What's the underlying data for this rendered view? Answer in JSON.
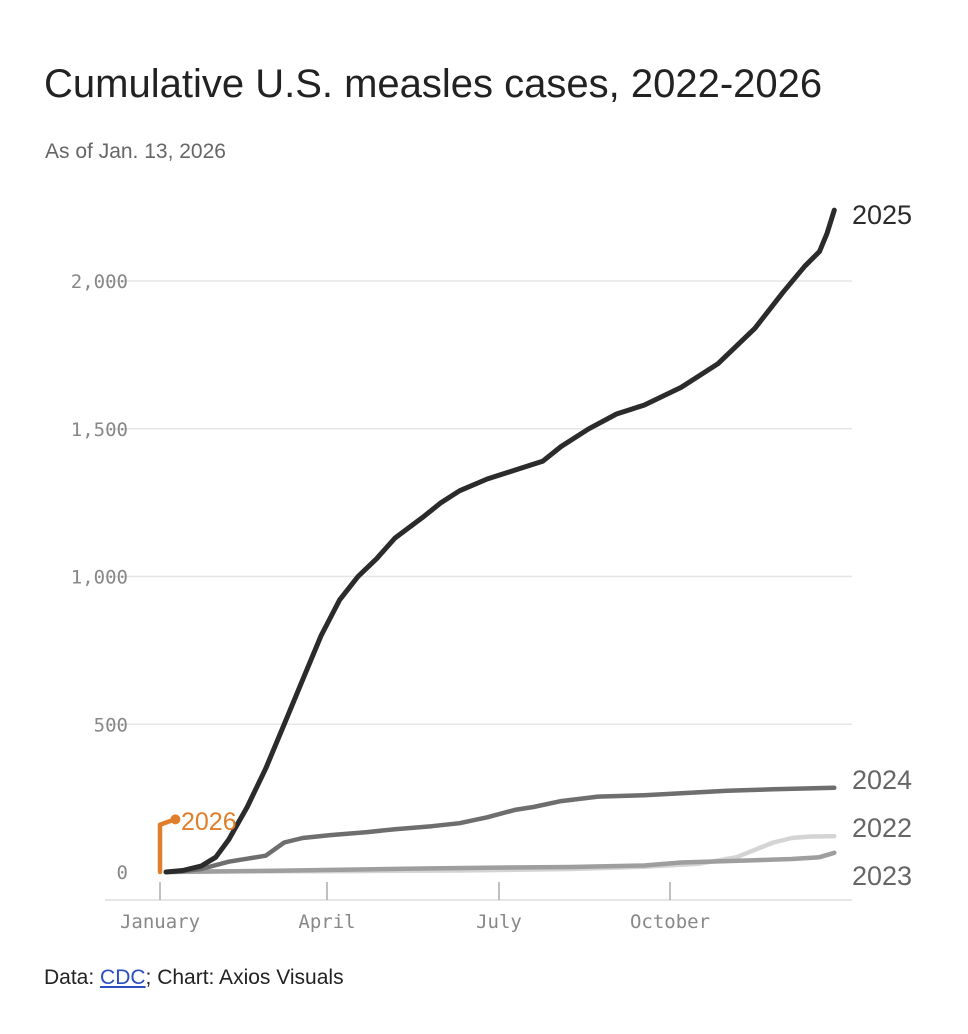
{
  "header": {
    "title": "Cumulative U.S. measles cases, 2022-2026",
    "subtitle": "As of Jan. 13, 2026"
  },
  "footer": {
    "data_label": "Data: ",
    "data_link": "CDC",
    "chart_credit": "; Chart: Axios Visuals"
  },
  "chart_data": {
    "type": "line",
    "title": "Cumulative U.S. measles cases, 2022-2026",
    "subtitle": "As of Jan. 13, 2026",
    "xlabel": "",
    "ylabel": "",
    "x_unit": "day of year",
    "xlim": [
      1,
      365
    ],
    "ylim": [
      0,
      2300
    ],
    "y_ticks": [
      0,
      500,
      1000,
      1500,
      2000
    ],
    "y_tick_labels": [
      "0",
      "500",
      "1,000",
      "1,500",
      "2,000"
    ],
    "x_ticks": [
      1,
      91,
      182,
      274
    ],
    "x_tick_labels": [
      "January",
      "April",
      "July",
      "October"
    ],
    "grid": true,
    "legend": "direct labels at line ends",
    "series": [
      {
        "name": "2025",
        "color": "#2b2b2b",
        "points": [
          [
            1,
            0
          ],
          [
            10,
            5
          ],
          [
            20,
            20
          ],
          [
            28,
            50
          ],
          [
            35,
            110
          ],
          [
            45,
            220
          ],
          [
            55,
            350
          ],
          [
            65,
            500
          ],
          [
            75,
            650
          ],
          [
            85,
            800
          ],
          [
            95,
            920
          ],
          [
            105,
            1000
          ],
          [
            115,
            1060
          ],
          [
            125,
            1130
          ],
          [
            140,
            1200
          ],
          [
            150,
            1250
          ],
          [
            160,
            1290
          ],
          [
            175,
            1330
          ],
          [
            190,
            1360
          ],
          [
            205,
            1390
          ],
          [
            215,
            1440
          ],
          [
            230,
            1500
          ],
          [
            245,
            1550
          ],
          [
            260,
            1580
          ],
          [
            280,
            1640
          ],
          [
            300,
            1720
          ],
          [
            320,
            1840
          ],
          [
            335,
            1960
          ],
          [
            347,
            2050
          ],
          [
            355,
            2100
          ],
          [
            359,
            2160
          ],
          [
            363,
            2240
          ]
        ]
      },
      {
        "name": "2024",
        "color": "#6e6e6e",
        "points": [
          [
            1,
            0
          ],
          [
            10,
            3
          ],
          [
            20,
            10
          ],
          [
            35,
            35
          ],
          [
            45,
            45
          ],
          [
            55,
            55
          ],
          [
            65,
            100
          ],
          [
            75,
            115
          ],
          [
            90,
            125
          ],
          [
            110,
            135
          ],
          [
            125,
            145
          ],
          [
            145,
            155
          ],
          [
            160,
            165
          ],
          [
            175,
            185
          ],
          [
            190,
            210
          ],
          [
            200,
            220
          ],
          [
            215,
            240
          ],
          [
            235,
            255
          ],
          [
            260,
            260
          ],
          [
            285,
            268
          ],
          [
            305,
            275
          ],
          [
            330,
            280
          ],
          [
            363,
            285
          ]
        ]
      },
      {
        "name": "2022",
        "color": "#d4d4d4",
        "points": [
          [
            1,
            0
          ],
          [
            40,
            2
          ],
          [
            100,
            3
          ],
          [
            160,
            5
          ],
          [
            220,
            10
          ],
          [
            260,
            18
          ],
          [
            290,
            28
          ],
          [
            310,
            50
          ],
          [
            320,
            75
          ],
          [
            330,
            100
          ],
          [
            340,
            115
          ],
          [
            350,
            120
          ],
          [
            363,
            121
          ]
        ]
      },
      {
        "name": "2023",
        "color": "#9e9e9e",
        "points": [
          [
            1,
            0
          ],
          [
            30,
            2
          ],
          [
            60,
            4
          ],
          [
            100,
            8
          ],
          [
            140,
            12
          ],
          [
            180,
            15
          ],
          [
            220,
            17
          ],
          [
            260,
            22
          ],
          [
            280,
            32
          ],
          [
            300,
            36
          ],
          [
            320,
            40
          ],
          [
            340,
            44
          ],
          [
            355,
            50
          ],
          [
            363,
            65
          ]
        ]
      },
      {
        "name": "2026",
        "color": "#e07f2b",
        "points": [
          [
            1,
            0
          ],
          [
            1,
            160
          ],
          [
            5,
            171
          ],
          [
            8,
            178
          ]
        ]
      }
    ]
  }
}
